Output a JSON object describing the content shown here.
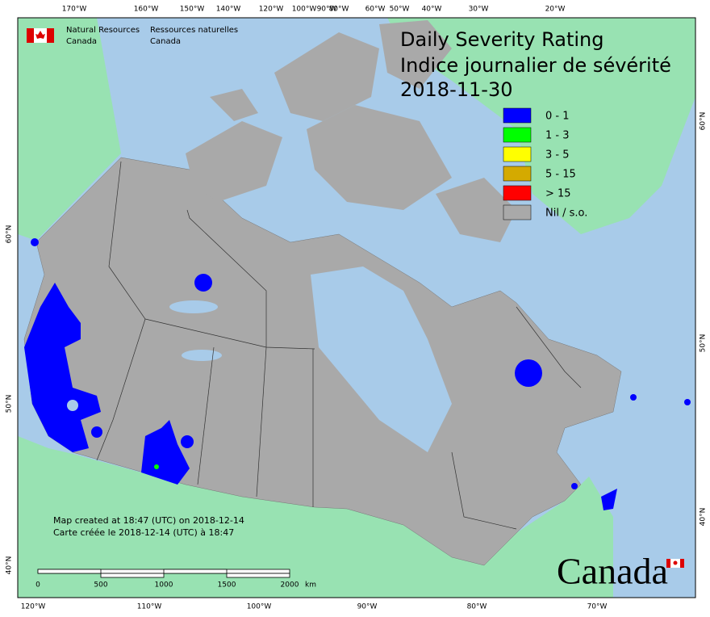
{
  "header": {
    "org_en_1": "Natural Resources",
    "org_en_2": "Canada",
    "org_fr_1": "Ressources naturelles",
    "org_fr_2": "Canada"
  },
  "title": {
    "en": "Daily Severity Rating",
    "fr": "Indice journalier de sévérité",
    "date": "2018-11-30"
  },
  "legend": [
    {
      "label": "0 - 1",
      "color": "#0000ff"
    },
    {
      "label": "1 - 3",
      "color": "#00ff00"
    },
    {
      "label": "3 - 5",
      "color": "#ffff00"
    },
    {
      "label": "5 - 15",
      "color": "#d4aa00"
    },
    {
      "label": "> 15",
      "color": "#ff0000"
    },
    {
      "label": "Nil / s.o.",
      "color": "#a9a9a9"
    }
  ],
  "top_axis": [
    "170°W",
    "160°W",
    "150°W",
    "140°W",
    "120°W",
    "100°W",
    "90°W",
    "80°W",
    "60°W",
    "50°W",
    "40°W",
    "30°W",
    "20°W"
  ],
  "bottom_axis": [
    "120°W",
    "110°W",
    "100°W",
    "90°W",
    "80°W",
    "70°W"
  ],
  "left_axis": [
    "60°N",
    "50°N",
    "40°N"
  ],
  "right_axis": [
    "60°N",
    "50°N",
    "40°N"
  ],
  "credits": [
    "Map created at 18:47 (UTC) on 2018-12-14",
    "Carte créée le 2018-12-14 (UTC) à 18:47"
  ],
  "scale_bar": {
    "labels": [
      "0",
      "500",
      "1000",
      "1500",
      "2000"
    ],
    "unit": "km"
  },
  "wordmark": "Canada"
}
